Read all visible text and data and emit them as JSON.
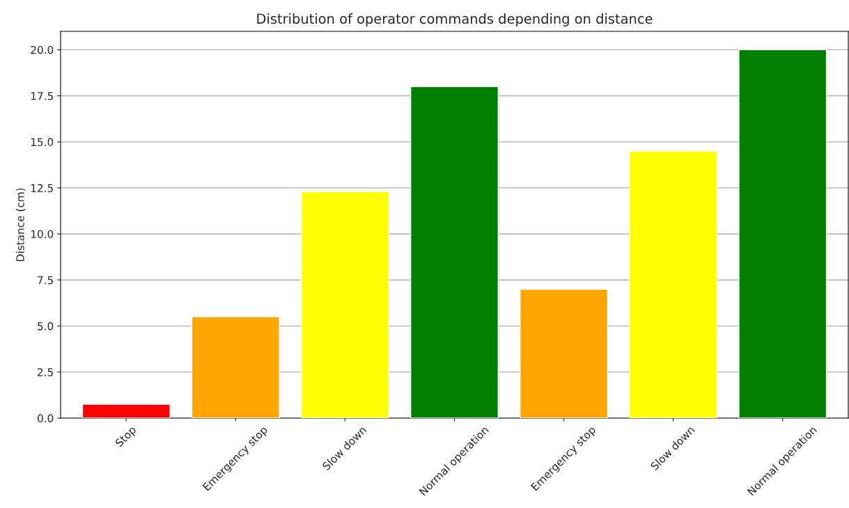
{
  "chart_data": {
    "type": "bar",
    "title": "Distribution of operator commands depending on distance",
    "ylabel": "Distance (cm)",
    "categories": [
      "Stop",
      "Emergency stop",
      "Slow down",
      "Normal operation",
      "Emergency stop",
      "Slow down",
      "Normal operation"
    ],
    "values": [
      0.75,
      5.5,
      12.3,
      18.0,
      7.0,
      14.5,
      20.0
    ],
    "colors": [
      "#ff0000",
      "#ffa500",
      "#ffff00",
      "#008000",
      "#ffa500",
      "#ffff00",
      "#008000"
    ],
    "ylim": [
      0,
      21
    ],
    "yticks": [
      {
        "value": 0,
        "label": "0.0"
      },
      {
        "value": 2.5,
        "label": "2.5"
      },
      {
        "value": 5,
        "label": "5.0"
      },
      {
        "value": 7.5,
        "label": "7.5"
      },
      {
        "value": 10,
        "label": "10.0"
      },
      {
        "value": 12.5,
        "label": "12.5"
      },
      {
        "value": 15,
        "label": "15.0"
      },
      {
        "value": 17.5,
        "label": "17.5"
      },
      {
        "value": 20,
        "label": "20.0"
      }
    ],
    "grid": "y"
  }
}
